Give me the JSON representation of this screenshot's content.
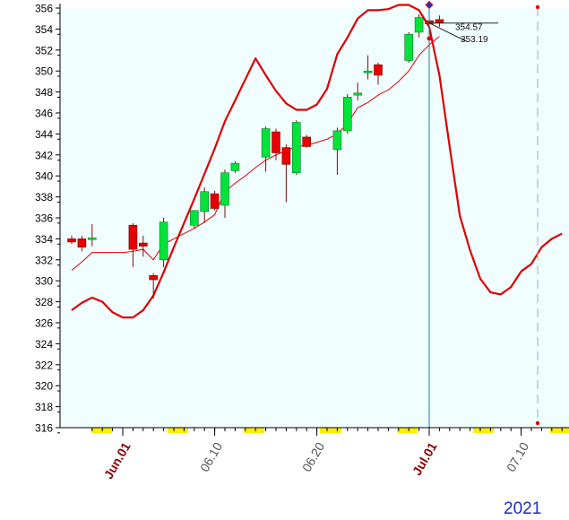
{
  "chart_data": {
    "type": "candlestick",
    "y_ticks": [
      "356",
      "354",
      "352",
      "350",
      "348",
      "346",
      "344",
      "342",
      "340",
      "338",
      "336",
      "334",
      "332",
      "330",
      "328",
      "326",
      "324",
      "322",
      "320",
      "318",
      "316"
    ],
    "ylim": [
      316,
      356.5
    ],
    "x_ticks": [
      {
        "label": "Jun.01",
        "day": 4,
        "style": "month"
      },
      {
        "label": "06.10",
        "day": 13,
        "style": "day"
      },
      {
        "label": "06.20",
        "day": 23,
        "style": "day"
      },
      {
        "label": "Jul.01",
        "day": 34,
        "style": "month"
      },
      {
        "label": "07.10",
        "day": 43,
        "style": "day"
      }
    ],
    "year_label": "2021",
    "price_labels": [
      "354.57",
      "353.19"
    ],
    "candles": [
      {
        "day": -1,
        "open": 334.0,
        "high": 334.3,
        "low": 333.5,
        "close": 333.7
      },
      {
        "day": 0,
        "open": 334.0,
        "high": 334.3,
        "low": 332.8,
        "close": 333.2
      },
      {
        "day": 1,
        "open": 334.0,
        "high": 335.4,
        "low": 333.3,
        "close": 334.1
      },
      {
        "day": 5,
        "open": 335.3,
        "high": 335.5,
        "low": 331.3,
        "close": 333.0
      },
      {
        "day": 6,
        "open": 333.6,
        "high": 334.3,
        "low": 332.3,
        "close": 333.3
      },
      {
        "day": 7,
        "open": 330.5,
        "high": 330.7,
        "low": 328.3,
        "close": 330.1
      },
      {
        "day": 8,
        "open": 332.0,
        "high": 336.0,
        "low": 331.3,
        "close": 335.6
      },
      {
        "day": 11,
        "open": 335.3,
        "high": 336.7,
        "low": 335.0,
        "close": 336.7
      },
      {
        "day": 12,
        "open": 336.6,
        "high": 338.9,
        "low": 335.5,
        "close": 338.5
      },
      {
        "day": 13,
        "open": 338.3,
        "high": 338.6,
        "low": 336.7,
        "close": 336.9
      },
      {
        "day": 14,
        "open": 337.2,
        "high": 340.6,
        "low": 336.0,
        "close": 340.3
      },
      {
        "day": 15,
        "open": 340.5,
        "high": 341.4,
        "low": 340.3,
        "close": 341.2
      },
      {
        "day": 18,
        "open": 341.8,
        "high": 344.7,
        "low": 340.4,
        "close": 344.5
      },
      {
        "day": 19,
        "open": 344.2,
        "high": 344.5,
        "low": 341.5,
        "close": 342.2
      },
      {
        "day": 20,
        "open": 342.7,
        "high": 343.0,
        "low": 337.5,
        "close": 341.1
      },
      {
        "day": 21,
        "open": 340.3,
        "high": 345.3,
        "low": 340.1,
        "close": 345.1
      },
      {
        "day": 22,
        "open": 343.7,
        "high": 343.9,
        "low": 342.7,
        "close": 342.8
      },
      {
        "day": 25,
        "open": 342.5,
        "high": 344.6,
        "low": 340.1,
        "close": 344.3
      },
      {
        "day": 26,
        "open": 344.3,
        "high": 347.8,
        "low": 344.0,
        "close": 347.5
      },
      {
        "day": 27,
        "open": 347.7,
        "high": 348.9,
        "low": 347.2,
        "close": 347.9
      },
      {
        "day": 28,
        "open": 349.9,
        "high": 351.5,
        "low": 349.2,
        "close": 350.0
      },
      {
        "day": 29,
        "open": 350.6,
        "high": 350.8,
        "low": 348.7,
        "close": 349.6
      },
      {
        "day": 32,
        "open": 351.0,
        "high": 353.7,
        "low": 350.8,
        "close": 353.5
      },
      {
        "day": 33,
        "open": 353.7,
        "high": 355.4,
        "low": 353.2,
        "close": 355.1
      },
      {
        "day": 34,
        "open": 354.8,
        "high": 355.5,
        "low": 353.9,
        "close": 354.5
      },
      {
        "day": 35,
        "open": 354.9,
        "high": 355.3,
        "low": 354.2,
        "close": 354.6
      }
    ],
    "moving_average": {
      "x": [
        -1,
        0,
        1,
        2,
        3,
        4,
        5,
        6,
        7,
        8,
        9,
        10,
        11,
        12,
        13,
        14,
        15,
        16,
        17,
        18,
        19,
        20,
        21,
        22,
        23,
        24,
        25,
        26,
        27,
        28,
        29,
        30,
        31,
        32,
        33,
        34,
        35
      ],
      "y": [
        331.0,
        331.8,
        332.7,
        332.7,
        332.7,
        332.7,
        332.8,
        333.0,
        332.0,
        333.5,
        334.0,
        334.5,
        335.0,
        335.6,
        336.3,
        338.5,
        339.3,
        340.0,
        340.8,
        341.5,
        342.0,
        342.4,
        342.8,
        342.9,
        343.2,
        343.5,
        344.0,
        345.0,
        346.5,
        347.0,
        347.7,
        348.2,
        349.0,
        350.0,
        351.5,
        352.5,
        353.3
      ]
    },
    "bollinger_band": {
      "x": [
        -1,
        0,
        1,
        2,
        3,
        4,
        5,
        6,
        7,
        8,
        9,
        10,
        11,
        12,
        13,
        14,
        15,
        16,
        17,
        18,
        19,
        20,
        21,
        22,
        23,
        24,
        25,
        26,
        27,
        28,
        29,
        30,
        31,
        32,
        33,
        34,
        35,
        36,
        37,
        38,
        39,
        40,
        41,
        42,
        43,
        44,
        45,
        46,
        47
      ],
      "y": [
        327.2,
        327.9,
        328.4,
        328.0,
        327.0,
        326.5,
        326.5,
        327.2,
        328.6,
        330.8,
        333.2,
        335.5,
        337.8,
        340.2,
        342.6,
        345.2,
        347.2,
        349.2,
        351.2,
        349.6,
        348.1,
        346.9,
        346.3,
        346.3,
        346.8,
        348.3,
        351.6,
        353.2,
        355.0,
        355.8,
        355.8,
        355.9,
        356.3,
        356.3,
        355.8,
        354.2,
        349.6,
        342.8,
        336.2,
        332.9,
        330.2,
        328.9,
        328.7,
        329.4,
        330.9,
        331.6,
        333.2,
        334.0,
        334.5
      ]
    },
    "colors": {
      "plot_background": "#f0feff",
      "up_candle": "#00e43a",
      "down_candle": "#e80000",
      "bands": "#dd0000",
      "cursor_line": "#1f7f98",
      "month_label": "#8b0000",
      "day_label": "#555555",
      "weekend_marker": "#ffee00",
      "year": "#1a2ccc"
    }
  }
}
